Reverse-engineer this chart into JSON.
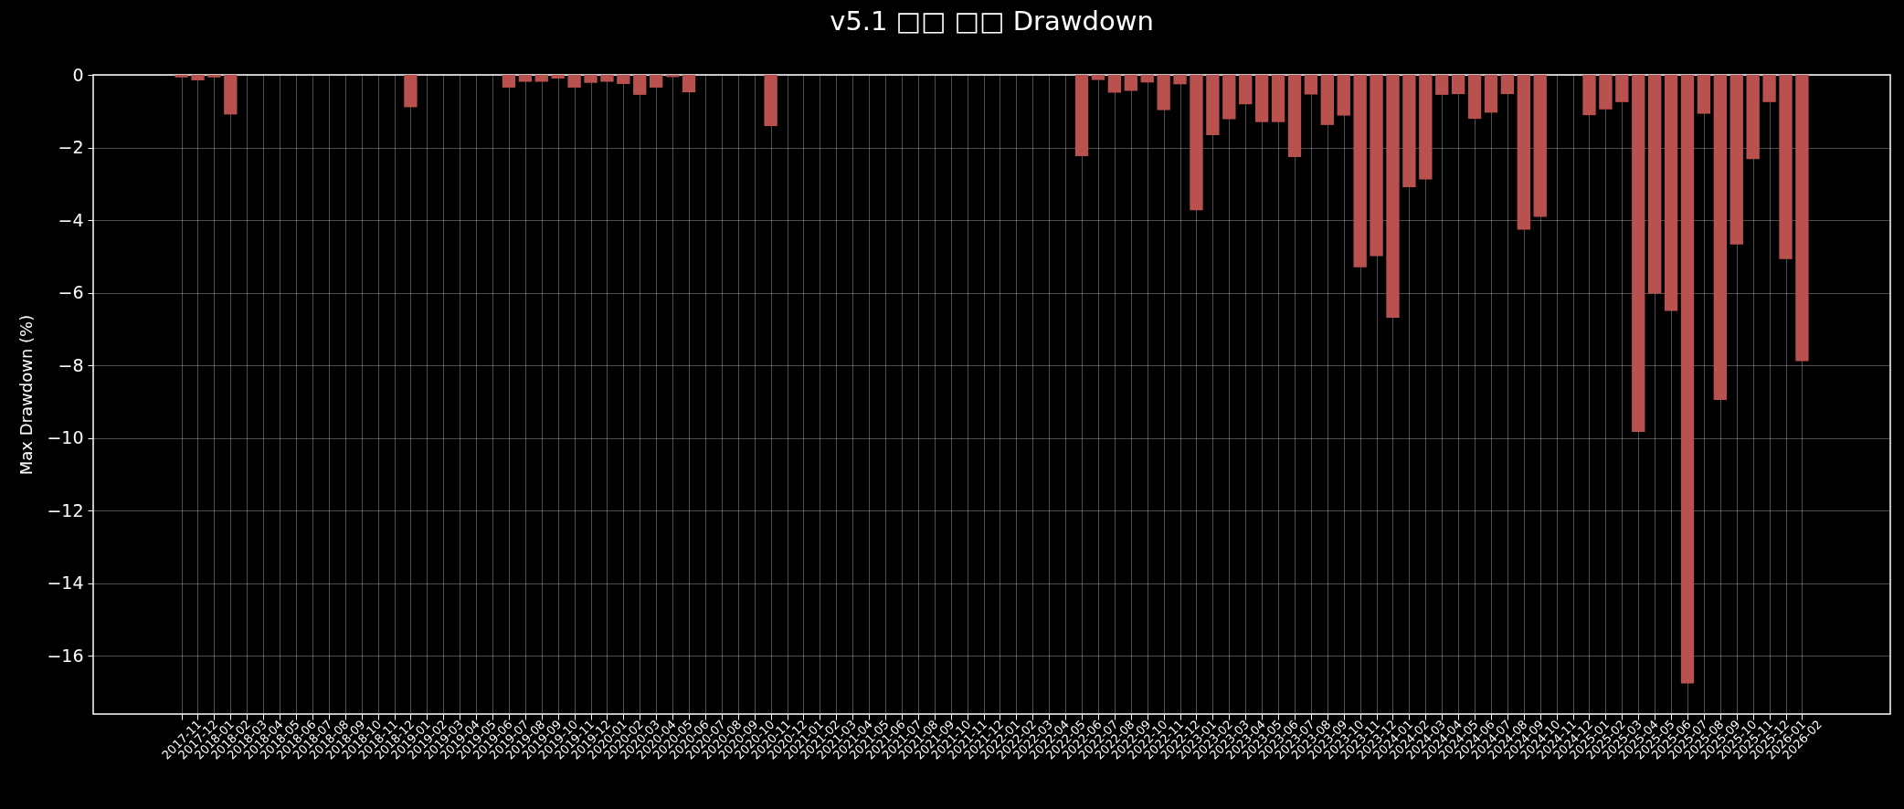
{
  "chart_data": {
    "type": "bar",
    "title": "v5.1 □□ □□ Drawdown",
    "ylabel": "Max Drawdown (%)",
    "categories": [
      "2017-11",
      "2017-12",
      "2018-01",
      "2018-02",
      "2018-03",
      "2018-04",
      "2018-05",
      "2018-06",
      "2018-07",
      "2018-08",
      "2018-09",
      "2018-10",
      "2018-11",
      "2018-12",
      "2019-01",
      "2019-02",
      "2019-03",
      "2019-04",
      "2019-05",
      "2019-06",
      "2019-07",
      "2019-08",
      "2019-09",
      "2019-10",
      "2019-11",
      "2019-12",
      "2020-01",
      "2020-02",
      "2020-03",
      "2020-04",
      "2020-05",
      "2020-06",
      "2020-07",
      "2020-08",
      "2020-09",
      "2020-10",
      "2020-11",
      "2020-12",
      "2021-01",
      "2021-02",
      "2021-03",
      "2021-04",
      "2021-05",
      "2021-06",
      "2021-07",
      "2021-08",
      "2021-09",
      "2021-10",
      "2021-11",
      "2021-12",
      "2022-01",
      "2022-02",
      "2022-03",
      "2022-04",
      "2022-05",
      "2022-06",
      "2022-07",
      "2022-08",
      "2022-09",
      "2022-10",
      "2022-11",
      "2022-12",
      "2023-01",
      "2023-02",
      "2023-03",
      "2023-04",
      "2023-05",
      "2023-06",
      "2023-07",
      "2023-08",
      "2023-09",
      "2023-10",
      "2023-11",
      "2023-12",
      "2024-01",
      "2024-02",
      "2024-03",
      "2024-04",
      "2024-05",
      "2024-06",
      "2024-07",
      "2024-08",
      "2024-09",
      "2024-10",
      "2024-11",
      "2024-12",
      "2025-01",
      "2025-02",
      "2025-03",
      "2025-04",
      "2025-05",
      "2025-06",
      "2025-07",
      "2025-08",
      "2025-09",
      "2025-10",
      "2025-11",
      "2025-12",
      "2026-01",
      "2026-02"
    ],
    "values": [
      -0.07,
      -0.15,
      -0.07,
      -1.09,
      0,
      0,
      0,
      0,
      0,
      0,
      0,
      0,
      0,
      0,
      -0.89,
      0,
      0,
      0,
      0,
      0,
      -0.35,
      -0.19,
      -0.19,
      -0.1,
      -0.35,
      -0.22,
      -0.19,
      -0.25,
      -0.55,
      -0.35,
      -0.06,
      -0.48,
      0,
      0,
      0,
      0,
      -1.41,
      0,
      0,
      0,
      0,
      0,
      0,
      0,
      0,
      0,
      0,
      0,
      0,
      0,
      0,
      0,
      0,
      0,
      0,
      -2.24,
      -0.14,
      -0.49,
      -0.44,
      -0.21,
      -0.97,
      -0.26,
      -3.73,
      -1.66,
      -1.22,
      -0.81,
      -1.3,
      -1.3,
      -2.26,
      -0.54,
      -1.38,
      -1.12,
      -5.3,
      -4.99,
      -6.69,
      -3.09,
      -2.88,
      -0.55,
      -0.53,
      -1.21,
      -1.04,
      -0.53,
      -4.26,
      -3.91,
      0,
      0,
      -1.11,
      -0.95,
      -0.75,
      -9.83,
      -6.02,
      -6.5,
      -16.76,
      -1.07,
      -8.95,
      -4.67,
      -2.32,
      -0.75,
      -5.07,
      -7.88
    ],
    "color": "#b9514f",
    "ylim": [
      -17.6,
      0
    ],
    "yticks": [
      -16,
      -14,
      -12,
      -10,
      -8,
      -6,
      -4,
      -2,
      0
    ],
    "grid": true
  }
}
